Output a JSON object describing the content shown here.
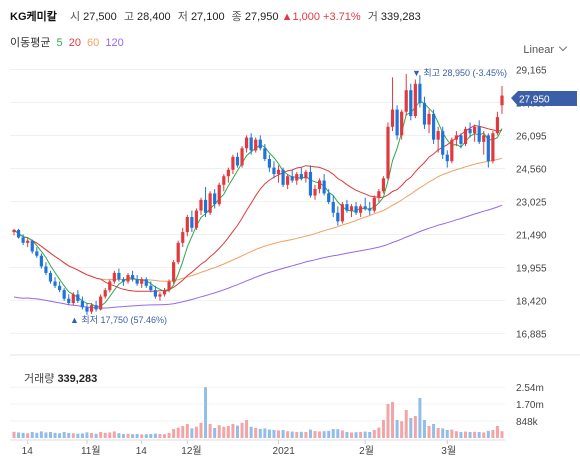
{
  "header": {
    "name": "KG케미칼",
    "open_label": "시",
    "open": "27,500",
    "high_label": "고",
    "high": "28,400",
    "low_label": "저",
    "low": "27,100",
    "close_label": "종",
    "close": "27,950",
    "change": "▲1,000",
    "change_pct": "+3.71%",
    "volume_label": "거",
    "volume": "339,283"
  },
  "moving_avg": {
    "label": "이동평균",
    "periods": [
      "5",
      "20",
      "60",
      "120"
    ],
    "colors": [
      "#2eaa4a",
      "#e0393e",
      "#f0a060",
      "#9966ee"
    ]
  },
  "scale_mode": "Linear",
  "price_labels": [
    "29,165",
    "27,630",
    "26,095",
    "24,560",
    "23,025",
    "21,490",
    "19,955",
    "18,420",
    "16,885"
  ],
  "current_price_tag": "27,950",
  "max_annotation": "▼ 최고 28,950 (-3.45%)",
  "min_annotation": "▲ 최저 17,750 (57.46%)",
  "volume_title": "거래량",
  "volume_value": "339,283",
  "volume_labels": [
    "2.54m",
    "1.70m",
    "848k"
  ],
  "x_labels": [
    "14",
    "11월",
    "14",
    "12월",
    "2021",
    "2월",
    "3월"
  ],
  "colors": {
    "up": "#e0393e",
    "down": "#1f73d9",
    "tag": "#3b5ea8"
  },
  "chart_data": {
    "type": "candlestick",
    "ylim": [
      16300,
      29700
    ],
    "volume_ylim": [
      0,
      2900000
    ],
    "legend": "top-left",
    "grid": true,
    "candles": [
      [
        21600,
        21750,
        21450,
        21700,
        310000
      ],
      [
        21700,
        21750,
        21300,
        21350,
        280000
      ],
      [
        21350,
        21500,
        21000,
        21100,
        260000
      ],
      [
        21100,
        21300,
        20900,
        21200,
        240000
      ],
      [
        21200,
        21250,
        20600,
        20700,
        300000
      ],
      [
        20700,
        20900,
        20400,
        20500,
        260000
      ],
      [
        20500,
        20600,
        19900,
        20000,
        330000
      ],
      [
        20000,
        20200,
        19600,
        19700,
        280000
      ],
      [
        19700,
        19800,
        19200,
        19300,
        300000
      ],
      [
        19300,
        19500,
        19000,
        19100,
        260000
      ],
      [
        19100,
        19300,
        18800,
        18900,
        240000
      ],
      [
        18900,
        19000,
        18400,
        18500,
        300000
      ],
      [
        18500,
        18700,
        18200,
        18300,
        250000
      ],
      [
        18300,
        18800,
        18200,
        18700,
        240000
      ],
      [
        18700,
        18900,
        18300,
        18400,
        220000
      ],
      [
        18400,
        18600,
        18000,
        18100,
        230000
      ],
      [
        18100,
        18300,
        17750,
        17900,
        280000
      ],
      [
        17900,
        18300,
        17800,
        18200,
        250000
      ],
      [
        18200,
        18400,
        17900,
        18000,
        210000
      ],
      [
        18000,
        18700,
        17950,
        18600,
        300000
      ],
      [
        18600,
        19000,
        18500,
        18900,
        260000
      ],
      [
        18900,
        19400,
        18800,
        19300,
        280000
      ],
      [
        19300,
        19800,
        19200,
        19700,
        330000
      ],
      [
        19700,
        19900,
        19300,
        19400,
        240000
      ],
      [
        19400,
        19500,
        19100,
        19300,
        200000
      ],
      [
        19300,
        19700,
        19200,
        19600,
        210000
      ],
      [
        19600,
        19800,
        19300,
        19400,
        190000
      ],
      [
        19400,
        19600,
        19100,
        19200,
        200000
      ],
      [
        19200,
        19500,
        19000,
        19400,
        180000
      ],
      [
        19400,
        19500,
        19000,
        19100,
        190000
      ],
      [
        19100,
        19300,
        18800,
        18900,
        200000
      ],
      [
        18900,
        19100,
        18500,
        18600,
        220000
      ],
      [
        18600,
        18800,
        18400,
        18700,
        200000
      ],
      [
        18700,
        19000,
        18600,
        18900,
        190000
      ],
      [
        18900,
        19400,
        18800,
        19300,
        260000
      ],
      [
        19300,
        20300,
        19200,
        20200,
        450000
      ],
      [
        20200,
        21200,
        20100,
        21100,
        520000
      ],
      [
        21100,
        21800,
        20900,
        21600,
        600000
      ],
      [
        21600,
        22400,
        21400,
        22300,
        700000
      ],
      [
        22300,
        22600,
        21600,
        21800,
        480000
      ],
      [
        21800,
        22700,
        21700,
        22600,
        560000
      ],
      [
        22600,
        23200,
        22400,
        23100,
        760000
      ],
      [
        23100,
        23700,
        22300,
        22500,
        2540000
      ],
      [
        22500,
        23500,
        22400,
        23400,
        700000
      ],
      [
        23400,
        23600,
        22700,
        22900,
        500000
      ],
      [
        22900,
        23900,
        22800,
        23800,
        640000
      ],
      [
        23800,
        24300,
        23500,
        24200,
        560000
      ],
      [
        24200,
        24600,
        23900,
        24500,
        600000
      ],
      [
        24500,
        25200,
        24300,
        25100,
        700000
      ],
      [
        25100,
        25300,
        24600,
        24700,
        620000
      ],
      [
        24700,
        25600,
        24600,
        25500,
        760000
      ],
      [
        25500,
        26100,
        25300,
        26000,
        900000
      ],
      [
        26000,
        26200,
        25200,
        25400,
        560000
      ],
      [
        25400,
        26000,
        25300,
        25900,
        500000
      ],
      [
        25900,
        26100,
        25400,
        25500,
        460000
      ],
      [
        25500,
        25700,
        24900,
        25000,
        480000
      ],
      [
        25000,
        25200,
        24400,
        24600,
        420000
      ],
      [
        24600,
        24900,
        24100,
        24300,
        400000
      ],
      [
        24300,
        24700,
        23900,
        24500,
        380000
      ],
      [
        24500,
        24600,
        23700,
        23800,
        400000
      ],
      [
        23800,
        24300,
        23600,
        24200,
        340000
      ],
      [
        24200,
        24500,
        23900,
        24000,
        320000
      ],
      [
        24000,
        24400,
        23800,
        24300,
        300000
      ],
      [
        24300,
        24600,
        24000,
        24100,
        310000
      ],
      [
        24100,
        24500,
        23900,
        24400,
        300000
      ],
      [
        24400,
        24700,
        23200,
        23300,
        420000
      ],
      [
        23300,
        23800,
        23100,
        23600,
        350000
      ],
      [
        23600,
        24100,
        23400,
        24000,
        330000
      ],
      [
        24000,
        24300,
        23300,
        23400,
        340000
      ],
      [
        23400,
        23600,
        22900,
        23000,
        360000
      ],
      [
        23000,
        23300,
        22300,
        22500,
        450000
      ],
      [
        22500,
        22800,
        21900,
        22100,
        440000
      ],
      [
        22100,
        23000,
        22000,
        22900,
        380000
      ],
      [
        22900,
        23100,
        22500,
        22600,
        300000
      ],
      [
        22600,
        22900,
        22300,
        22800,
        280000
      ],
      [
        22800,
        23000,
        22400,
        22500,
        290000
      ],
      [
        22500,
        22900,
        22300,
        22800,
        300000
      ],
      [
        22800,
        23200,
        22600,
        22700,
        320000
      ],
      [
        22700,
        23000,
        22400,
        22600,
        300000
      ],
      [
        22600,
        23300,
        22500,
        23200,
        400000
      ],
      [
        23200,
        23600,
        23000,
        23500,
        520000
      ],
      [
        23500,
        24200,
        23400,
        24100,
        900000
      ],
      [
        24100,
        26700,
        24000,
        26500,
        1700000
      ],
      [
        26500,
        28800,
        26300,
        27300,
        1800000
      ],
      [
        27300,
        27500,
        25900,
        26100,
        900000
      ],
      [
        26100,
        27300,
        25900,
        27200,
        840000
      ],
      [
        27200,
        28950,
        27000,
        28200,
        1400000
      ],
      [
        28200,
        28500,
        26800,
        27000,
        1000000
      ],
      [
        27000,
        28700,
        26900,
        28500,
        1100000
      ],
      [
        28500,
        28900,
        27400,
        27600,
        2000000
      ],
      [
        27600,
        27900,
        26400,
        26600,
        900000
      ],
      [
        26600,
        27300,
        26200,
        27100,
        600000
      ],
      [
        27100,
        27300,
        25700,
        25900,
        700000
      ],
      [
        25900,
        26500,
        25300,
        26300,
        500000
      ],
      [
        26300,
        26500,
        25000,
        25200,
        480000
      ],
      [
        25200,
        25400,
        24600,
        24900,
        400000
      ],
      [
        24900,
        26000,
        24800,
        25900,
        420000
      ],
      [
        25900,
        26300,
        25600,
        26100,
        340000
      ],
      [
        26100,
        26200,
        25500,
        25700,
        300000
      ],
      [
        25700,
        26500,
        25600,
        26400,
        320000
      ],
      [
        26400,
        26700,
        26000,
        26200,
        300000
      ],
      [
        26200,
        26600,
        25800,
        26500,
        310000
      ],
      [
        26500,
        26800,
        25700,
        25800,
        300000
      ],
      [
        25800,
        26300,
        25200,
        26100,
        280000
      ],
      [
        26100,
        26200,
        24600,
        24900,
        360000
      ],
      [
        24900,
        26300,
        24800,
        26200,
        400000
      ],
      [
        26200,
        27200,
        26100,
        26950,
        600000
      ],
      [
        27500,
        28400,
        27100,
        27950,
        339283
      ]
    ]
  }
}
